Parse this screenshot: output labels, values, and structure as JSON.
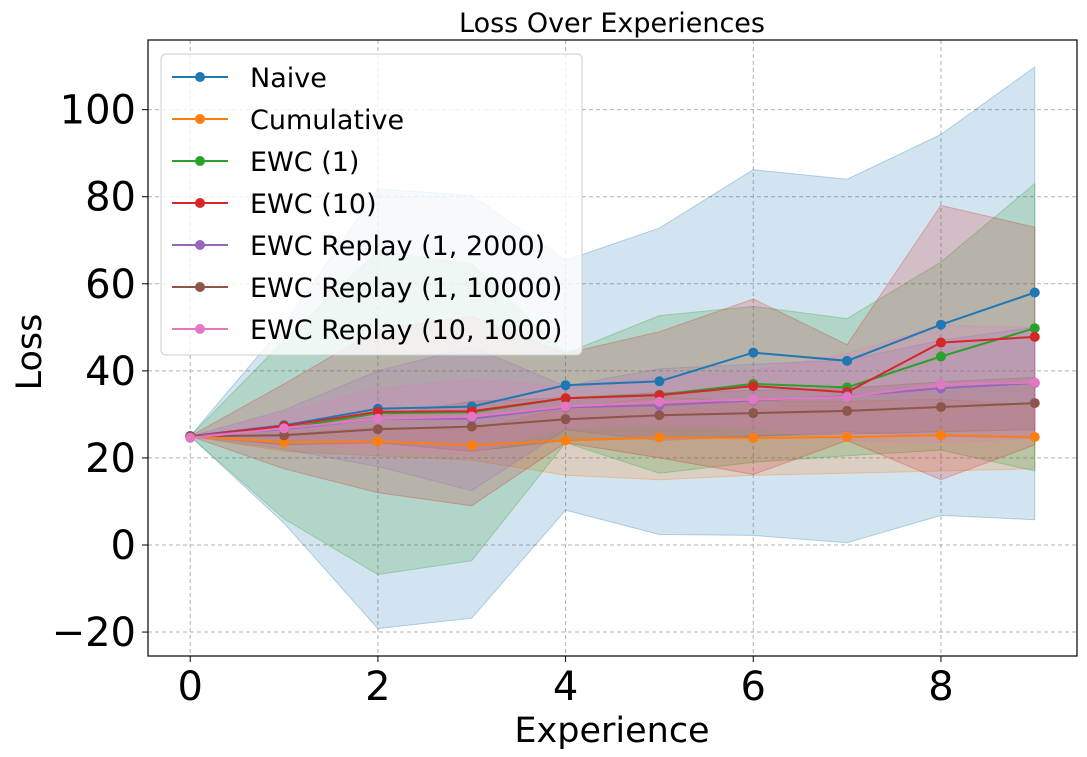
{
  "chart_data": {
    "type": "line",
    "title": "Loss Over Experiences",
    "xlabel": "Experience",
    "ylabel": "Loss",
    "xlim": [
      -0.45,
      9.45
    ],
    "ylim": [
      -25.5,
      116
    ],
    "x_ticks": [
      0,
      2,
      4,
      6,
      8
    ],
    "y_ticks": [
      -20,
      0,
      20,
      40,
      60,
      80,
      100
    ],
    "y_tick_labels": [
      "−20",
      "0",
      "20",
      "40",
      "60",
      "80",
      "100"
    ],
    "grid": true,
    "legend_position": "upper-left",
    "x": [
      0,
      1,
      2,
      3,
      4,
      5,
      6,
      7,
      8,
      9
    ],
    "series": [
      {
        "name": "Naive",
        "color": "#1f77b4",
        "values": [
          25.0,
          27.5,
          31.3,
          31.8,
          36.7,
          37.6,
          44.2,
          42.3,
          50.6,
          58.0
        ],
        "lower": [
          25.0,
          5.0,
          -19.2,
          -16.8,
          8.0,
          2.4,
          2.2,
          0.5,
          6.8,
          5.8
        ],
        "upper": [
          25.0,
          50.5,
          81.8,
          80.3,
          65.4,
          72.8,
          86.2,
          84.0,
          94.3,
          109.8
        ]
      },
      {
        "name": "Cumulative",
        "color": "#ff7f0e",
        "values": [
          25.0,
          23.6,
          23.8,
          22.9,
          24.0,
          24.7,
          24.6,
          24.8,
          25.2,
          24.8
        ],
        "lower": [
          25.0,
          21.5,
          20.5,
          19.5,
          16.0,
          15.0,
          16.0,
          16.5,
          17.0,
          17.5
        ],
        "upper": [
          25.0,
          25.5,
          27.0,
          26.5,
          31.5,
          34.0,
          33.0,
          33.0,
          33.5,
          32.0
        ]
      },
      {
        "name": "EWC (1)",
        "color": "#2ca02c",
        "values": [
          25.0,
          26.7,
          30.3,
          30.5,
          33.7,
          34.5,
          37.0,
          36.2,
          43.3,
          49.8
        ],
        "lower": [
          25.0,
          6.0,
          -6.8,
          -3.6,
          23.5,
          16.5,
          19.0,
          20.5,
          21.8,
          17.0
        ],
        "upper": [
          25.0,
          47.0,
          67.5,
          64.5,
          44.0,
          52.7,
          54.8,
          52.0,
          65.0,
          83.0
        ]
      },
      {
        "name": "EWC (10)",
        "color": "#d62728",
        "values": [
          25.0,
          27.3,
          30.6,
          30.7,
          33.7,
          34.4,
          36.5,
          35.1,
          46.5,
          47.8
        ],
        "lower": [
          25.0,
          17.5,
          12.0,
          9.0,
          23.5,
          20.0,
          16.2,
          24.0,
          15.0,
          23.0
        ],
        "upper": [
          25.0,
          37.0,
          49.5,
          52.5,
          44.0,
          49.0,
          56.5,
          46.0,
          78.0,
          73.0
        ]
      },
      {
        "name": "EWC Replay (1, 2000)",
        "color": "#9467bd",
        "values": [
          25.0,
          26.6,
          29.0,
          29.0,
          31.6,
          32.1,
          33.2,
          34.2,
          36.0,
          37.2
        ],
        "lower": [
          25.0,
          22.0,
          18.0,
          12.5,
          26.5,
          24.0,
          25.0,
          26.0,
          25.0,
          24.5
        ],
        "upper": [
          25.0,
          31.0,
          40.0,
          45.5,
          36.5,
          40.5,
          41.5,
          42.5,
          47.0,
          50.0
        ]
      },
      {
        "name": "EWC Replay (1, 10000)",
        "color": "#8c564b",
        "values": [
          25.0,
          25.2,
          26.6,
          27.2,
          28.9,
          29.8,
          30.3,
          30.8,
          31.7,
          32.6
        ],
        "lower": [
          25.0,
          23.0,
          23.5,
          21.5,
          24.0,
          24.5,
          25.0,
          25.5,
          26.0,
          26.5
        ],
        "upper": [
          25.0,
          27.5,
          29.5,
          33.0,
          33.8,
          35.0,
          35.5,
          36.0,
          37.5,
          38.5
        ]
      },
      {
        "name": "EWC Replay (10, 1000)",
        "color": "#e377c2",
        "values": [
          24.6,
          26.8,
          29.0,
          29.5,
          31.8,
          32.9,
          33.4,
          34.0,
          36.9,
          37.3
        ],
        "lower": [
          24.6,
          23.5,
          22.0,
          21.0,
          27.0,
          27.5,
          27.0,
          24.0,
          23.5,
          24.5
        ],
        "upper": [
          24.6,
          30.5,
          36.0,
          38.0,
          36.5,
          38.5,
          40.0,
          44.0,
          50.5,
          50.0
        ]
      }
    ]
  }
}
